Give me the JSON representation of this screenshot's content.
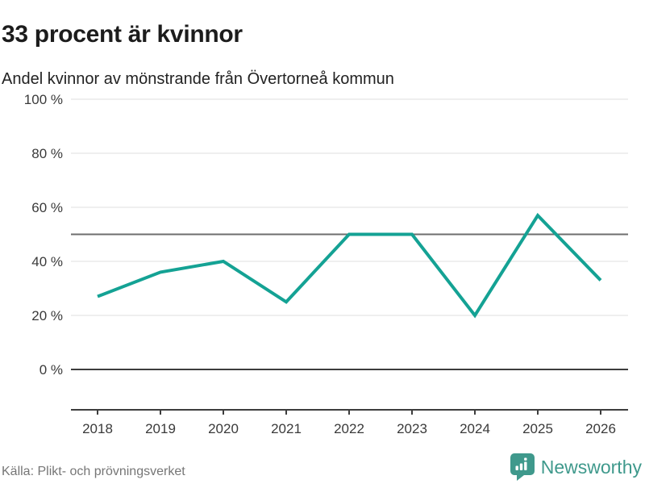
{
  "header": {
    "title": "33 procent är kvinnor",
    "subtitle": "Andel kvinnor av mönstrande från Övertorneå kommun"
  },
  "footer": {
    "source": "Källa: Plikt- och prövningsverket",
    "brand_name": "Newsworthy",
    "brand_icon": "bar-chart-speech-bubble-icon"
  },
  "colors": {
    "line": "#14a294",
    "grid": "#e5e5e5",
    "reference_line": "#6e6e6e",
    "axis": "#3d3d3d",
    "tick_label": "#3a3a3a",
    "brand": "#3f998c",
    "title_text": "#1c1c1c",
    "source_text": "#767676"
  },
  "chart_data": {
    "type": "line",
    "title": "33 procent är kvinnor",
    "subtitle": "Andel kvinnor av mönstrande från Övertorneå kommun",
    "x": [
      2018,
      2019,
      2020,
      2021,
      2022,
      2023,
      2024,
      2025,
      2026
    ],
    "x_labels": [
      "2018",
      "2019",
      "2020",
      "2021",
      "2022",
      "2023",
      "2024",
      "2025",
      "2026"
    ],
    "series": [
      {
        "name": "Andel kvinnor av mönstrande",
        "values": [
          27,
          36,
          40,
          25,
          50,
          50,
          20,
          57,
          33
        ]
      }
    ],
    "unit": "%",
    "ylim": [
      0,
      100
    ],
    "yticks": [
      0,
      20,
      40,
      60,
      80,
      100
    ],
    "ytick_labels": [
      "0 %",
      "20 %",
      "40 %",
      "60 %",
      "80 %",
      "100 %"
    ],
    "reference_line": 50,
    "grid": "horizontal",
    "legend": "none",
    "markers": "none"
  }
}
